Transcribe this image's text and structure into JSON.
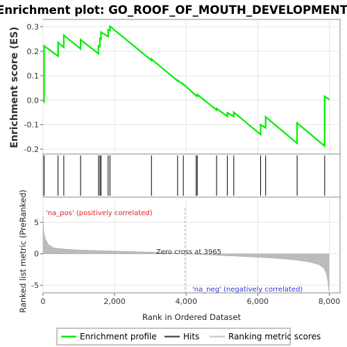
{
  "chart_data": {
    "type": "line",
    "title": "Enrichment plot: GO_ROOF_OF_MOUTH_DEVELOPMENT",
    "xlabel": "Rank in Ordered Dataset",
    "ylabel_top": "Enrichment score (ES)",
    "ylabel_bottom": "Ranked list metric (PreRanked)",
    "xlim": [
      0,
      8300
    ],
    "x_ticks": [
      0,
      2000,
      4000,
      6000,
      8000
    ],
    "x_tick_labels": [
      "0",
      "2,000",
      "4,000",
      "6,000",
      "8,000"
    ],
    "es_ylim": [
      -0.22,
      0.33
    ],
    "es_y_ticks": [
      -0.2,
      -0.1,
      0.0,
      0.1,
      0.2,
      0.3
    ],
    "es_y_tick_labels": [
      "-0.2",
      "-0.1",
      "0.0",
      "0.1",
      "0.2",
      "0.3"
    ],
    "metric_ylim": [
      -6.2,
      9
    ],
    "metric_y_ticks": [
      -5,
      0,
      5
    ],
    "metric_y_tick_labels": [
      "-5",
      "0",
      "5"
    ],
    "zero_cross_rank": 3965,
    "zero_cross_label": "Zero cross at 3965",
    "pos_label": "'na_pos' (positively correlated)",
    "neg_label": "'na_neg' (negatively correlated)",
    "grid": true,
    "legend_position": "bottom",
    "hits": [
      30,
      420,
      580,
      1050,
      1550,
      1590,
      1620,
      1820,
      1870,
      3030,
      3760,
      3920,
      4280,
      4310,
      4850,
      5150,
      5330,
      6080,
      6220,
      7100,
      7870
    ],
    "series": [
      {
        "name": "Enrichment profile",
        "color": "#00ee00",
        "x": [
          0,
          30,
          30,
          420,
          420,
          580,
          580,
          1050,
          1050,
          1550,
          1550,
          1590,
          1590,
          1620,
          1620,
          1820,
          1820,
          1870,
          1870,
          3030,
          3030,
          3760,
          3760,
          3920,
          3920,
          4280,
          4280,
          4310,
          4310,
          4850,
          4850,
          5150,
          5150,
          5330,
          5330,
          6080,
          6080,
          6220,
          6220,
          7100,
          7100,
          7870,
          7870,
          8000
        ],
        "y": [
          0.0,
          -0.005,
          0.222,
          0.18,
          0.236,
          0.216,
          0.265,
          0.21,
          0.247,
          0.19,
          0.222,
          0.219,
          0.252,
          0.25,
          0.278,
          0.26,
          0.288,
          0.284,
          0.302,
          0.163,
          0.168,
          0.079,
          0.081,
          0.065,
          0.066,
          0.018,
          0.019,
          0.017,
          0.023,
          -0.04,
          -0.034,
          -0.066,
          -0.051,
          -0.066,
          -0.049,
          -0.14,
          -0.1,
          -0.113,
          -0.068,
          -0.176,
          -0.093,
          -0.187,
          0.016,
          0.002
        ]
      },
      {
        "name": "Hits",
        "color": "#000000"
      },
      {
        "name": "Ranking metric scores",
        "color": "#bbbbbb",
        "x": [
          0,
          20,
          60,
          150,
          300,
          600,
          1000,
          1500,
          2000,
          2500,
          3000,
          3500,
          3965,
          4500,
          5000,
          5500,
          6000,
          6500,
          7000,
          7400,
          7700,
          7850,
          7920,
          7960,
          7990
        ],
        "y": [
          6.0,
          3.6,
          2.4,
          1.5,
          0.95,
          0.75,
          0.62,
          0.52,
          0.44,
          0.36,
          0.27,
          0.14,
          0.0,
          -0.14,
          -0.27,
          -0.4,
          -0.55,
          -0.72,
          -0.95,
          -1.25,
          -1.7,
          -2.3,
          -3.2,
          -4.5,
          -6.0
        ]
      }
    ]
  },
  "legend": {
    "items": [
      {
        "label": "Enrichment profile",
        "color": "#00ee00"
      },
      {
        "label": "Hits",
        "color": "#000000"
      },
      {
        "label": "Ranking metric scores",
        "color": "#bbbbbb"
      }
    ]
  },
  "colors": {
    "heat_band": [
      "#ff3a3a",
      "#ff5858",
      "#ff7a7a",
      "#ffaaaa",
      "#ffc6e8",
      "#eed8ff",
      "#d4d4ff",
      "#b4b4ff",
      "#8080ff",
      "#4848ee",
      "#1800c8"
    ]
  }
}
